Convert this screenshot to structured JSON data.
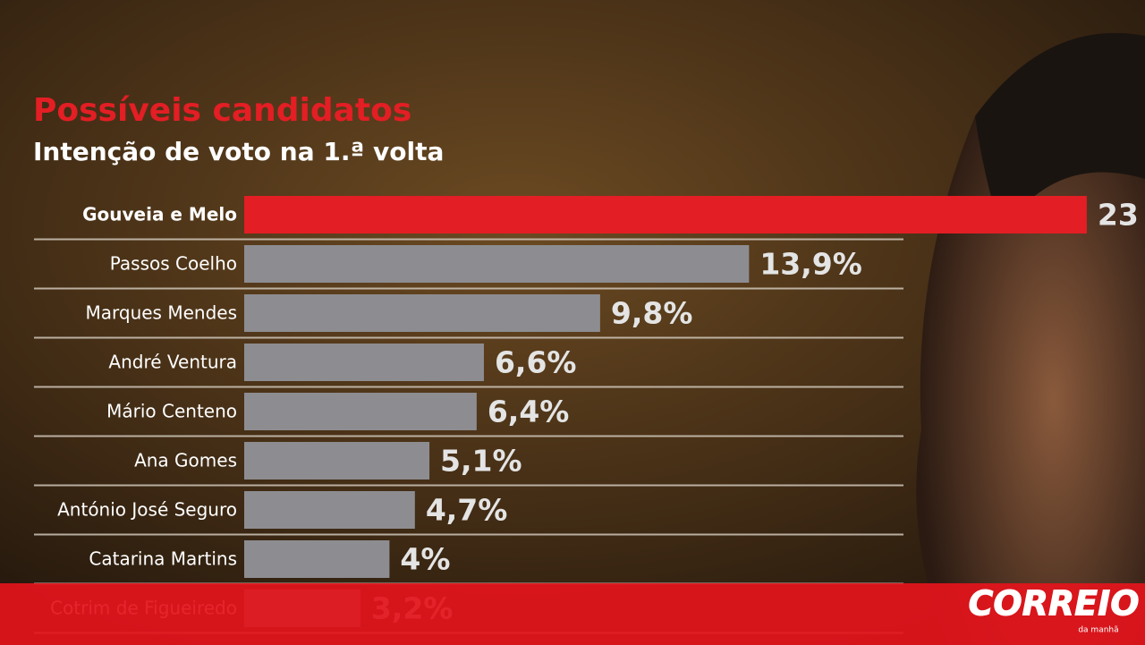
{
  "chart_data": {
    "type": "hbar",
    "title": "Possíveis candidatos",
    "subtitle": "Intenção de voto na 1.ª volta",
    "categories": [
      "Gouveia e Melo",
      "Passos Coelho",
      "Marques Mendes",
      "André Ventura",
      "Mário Centeno",
      "Ana Gomes",
      "António José Seguro",
      "Catarina Martins",
      "Cotrim de Figueiredo"
    ],
    "values": [
      23.2,
      13.9,
      9.8,
      6.6,
      6.4,
      5.1,
      4.7,
      4,
      3.2
    ],
    "value_labels": [
      "23",
      "13,9%",
      "9,8%",
      "6,6%",
      "6,4%",
      "5,1%",
      "4,7%",
      "4%",
      "3,2%"
    ],
    "colors": [
      "#e31e24",
      "#8d8d91",
      "#8d8d91",
      "#8d8d91",
      "#8d8d91",
      "#8d8d91",
      "#8d8d91",
      "#8d8d91",
      "#8d8d91"
    ]
  },
  "banner": {
    "logo": "CORREIO",
    "tagline": "da manhã"
  }
}
